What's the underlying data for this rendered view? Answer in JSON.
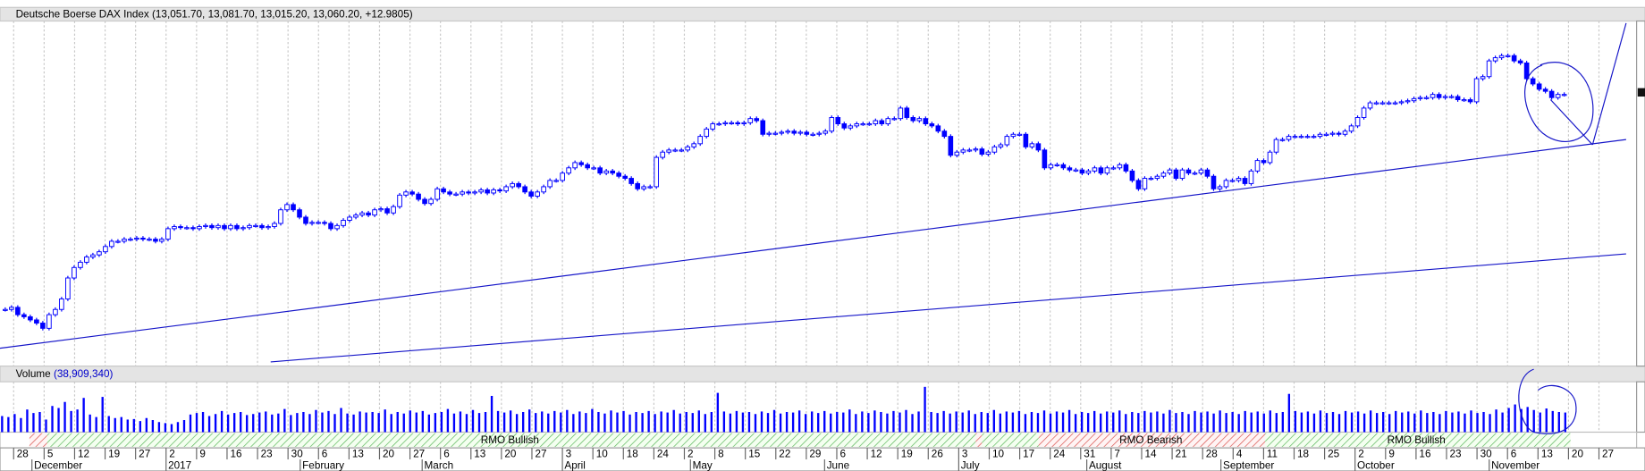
{
  "chart_data": [
    {
      "type": "candlestick",
      "title": "Deutsche Boerse DAX Index (13,051.70, 13,081.70, 13,015.20, 13,060.20, +12.9805)",
      "color": "#0000ff",
      "ylim": [
        10550,
        13800
      ],
      "values": [
        11050,
        11070,
        11000,
        10980,
        10950,
        10920,
        10870,
        11000,
        11050,
        11150,
        11350,
        11450,
        11500,
        11550,
        11570,
        11600,
        11650,
        11700,
        11700,
        11720,
        11720,
        11730,
        11720,
        11720,
        11700,
        11720,
        11820,
        11840,
        11830,
        11830,
        11820,
        11840,
        11850,
        11830,
        11850,
        11820,
        11850,
        11820,
        11830,
        11850,
        11850,
        11830,
        11840,
        11870,
        12000,
        12050,
        12000,
        11930,
        11870,
        11880,
        11880,
        11870,
        11820,
        11850,
        11900,
        11930,
        11950,
        11970,
        11950,
        12000,
        12010,
        11970,
        12030,
        12140,
        12170,
        12150,
        12100,
        12060,
        12100,
        12200,
        12170,
        12150,
        12150,
        12170,
        12160,
        12170,
        12190,
        12160,
        12190,
        12180,
        12220,
        12250,
        12220,
        12170,
        12130,
        12170,
        12220,
        12280,
        12280,
        12350,
        12400,
        12450,
        12430,
        12400,
        12400,
        12350,
        12370,
        12350,
        12320,
        12300,
        12250,
        12200,
        12220,
        12220,
        12500,
        12550,
        12570,
        12570,
        12570,
        12600,
        12630,
        12700,
        12770,
        12820,
        12820,
        12830,
        12830,
        12820,
        12830,
        12870,
        12850,
        12720,
        12730,
        12730,
        12740,
        12750,
        12730,
        12740,
        12720,
        12720,
        12730,
        12750,
        12880,
        12820,
        12780,
        12800,
        12820,
        12820,
        12820,
        12850,
        12820,
        12870,
        12870,
        12970,
        12880,
        12850,
        12870,
        12820,
        12800,
        12750,
        12700,
        12520,
        12550,
        12570,
        12570,
        12580,
        12530,
        12550,
        12600,
        12620,
        12700,
        12720,
        12720,
        12600,
        12630,
        12570,
        12400,
        12430,
        12430,
        12400,
        12380,
        12380,
        12350,
        12370,
        12400,
        12350,
        12400,
        12400,
        12430,
        12370,
        12280,
        12200,
        12300,
        12300,
        12320,
        12350,
        12380,
        12300,
        12380,
        12350,
        12350,
        12380,
        12320,
        12200,
        12220,
        12280,
        12280,
        12300,
        12250,
        12370,
        12470,
        12450,
        12550,
        12670,
        12670,
        12700,
        12700,
        12700,
        12700,
        12700,
        12720,
        12720,
        12730,
        12720,
        12750,
        12800,
        12880,
        12970,
        13020,
        13020,
        13020,
        13020,
        13020,
        13030,
        13040,
        13060,
        13070,
        13070,
        13100,
        13070,
        13080,
        13080,
        13050,
        13050,
        13030,
        13250,
        13270,
        13420,
        13450,
        13470,
        13470,
        13420,
        13400,
        13250,
        13200,
        13150,
        13130,
        13070,
        13100,
        13100
      ]
    },
    {
      "type": "bar",
      "title": "Volume",
      "value_text": "(38,909,340)",
      "color": "#0000ff",
      "ylim": [
        0,
        100000000
      ],
      "values": [
        32000000.0,
        30000000.0,
        36000000.0,
        28000000.0,
        45000000.0,
        38000000.0,
        40000000.0,
        25000000.0,
        52000000.0,
        48000000.0,
        60000000.0,
        42000000.0,
        45000000.0,
        68000000.0,
        35000000.0,
        30000000.0,
        70000000.0,
        32000000.0,
        28000000.0,
        30000000.0,
        25000000.0,
        26000000.0,
        22000000.0,
        28000000.0,
        24000000.0,
        20000000.0,
        18000000.0,
        16000000.0,
        20000000.0,
        24000000.0,
        35000000.0,
        38000000.0,
        40000000.0,
        32000000.0,
        36000000.0,
        42000000.0,
        35000000.0,
        38000000.0,
        40000000.0,
        34000000.0,
        36000000.0,
        39000000.0,
        41000000.0,
        35000000.0,
        37000000.0,
        46000000.0,
        34000000.0,
        38000000.0,
        40000000.0,
        36000000.0,
        44000000.0,
        39000000.0,
        42000000.0,
        36000000.0,
        48000000.0,
        37000000.0,
        35000000.0,
        41000000.0,
        39000000.0,
        40000000.0,
        38000000.0,
        45000000.0,
        36000000.0,
        40000000.0,
        37000000.0,
        43000000.0,
        39000000.0,
        42000000.0,
        35000000.0,
        38000000.0,
        40000000.0,
        46000000.0,
        37000000.0,
        41000000.0,
        36000000.0,
        44000000.0,
        38000000.0,
        40000000.0,
        72000000.0,
        42000000.0,
        39000000.0,
        43000000.0,
        36000000.0,
        40000000.0,
        45000000.0,
        38000000.0,
        41000000.0,
        37000000.0,
        42000000.0,
        39000000.0,
        44000000.0,
        36000000.0,
        41000000.0,
        38000000.0,
        46000000.0,
        40000000.0,
        37000000.0,
        43000000.0,
        39000000.0,
        42000000.0,
        35000000.0,
        40000000.0,
        38000000.0,
        42000000.0,
        36000000.0,
        41000000.0,
        39000000.0,
        44000000.0,
        37000000.0,
        40000000.0,
        38000000.0,
        43000000.0,
        36000000.0,
        40000000.0,
        78000000.0,
        41000000.0,
        37000000.0,
        42000000.0,
        39000000.0,
        40000000.0,
        36000000.0,
        41000000.0,
        38000000.0,
        44000000.0,
        37000000.0,
        40000000.0,
        39000000.0,
        43000000.0,
        36000000.0,
        41000000.0,
        38000000.0,
        42000000.0,
        37000000.0,
        40000000.0,
        39000000.0,
        45000000.0,
        36000000.0,
        41000000.0,
        38000000.0,
        43000000.0,
        40000000.0,
        37000000.0,
        42000000.0,
        39000000.0,
        44000000.0,
        36000000.0,
        41000000.0,
        90000000.0,
        40000000.0,
        38000000.0,
        42000000.0,
        37000000.0,
        41000000.0,
        39000000.0,
        43000000.0,
        36000000.0,
        40000000.0,
        38000000.0,
        44000000.0,
        37000000.0,
        41000000.0,
        39000000.0,
        42000000.0,
        36000000.0,
        40000000.0,
        38000000.0,
        43000000.0,
        37000000.0,
        41000000.0,
        39000000.0,
        44000000.0,
        36000000.0,
        40000000.0,
        38000000.0,
        42000000.0,
        37000000.0,
        41000000.0,
        39000000.0,
        43000000.0,
        36000000.0,
        40000000.0,
        38000000.0,
        42000000.0,
        39000000.0,
        41000000.0,
        37000000.0,
        44000000.0,
        38000000.0,
        40000000.0,
        36000000.0,
        42000000.0,
        39000000.0,
        41000000.0,
        37000000.0,
        43000000.0,
        38000000.0,
        40000000.0,
        36000000.0,
        42000000.0,
        39000000.0,
        41000000.0,
        37000000.0,
        43000000.0,
        38000000.0,
        40000000.0,
        76000000.0,
        42000000.0,
        39000000.0,
        41000000.0,
        37000000.0,
        43000000.0,
        38000000.0,
        40000000.0,
        36000000.0,
        42000000.0,
        39000000.0,
        41000000.0,
        37000000.0,
        43000000.0,
        38000000.0,
        40000000.0,
        36000000.0,
        42000000.0,
        39000000.0,
        41000000.0,
        37000000.0,
        43000000.0,
        38000000.0,
        40000000.0,
        36000000.0,
        42000000.0,
        39000000.0,
        41000000.0,
        37000000.0,
        43000000.0,
        38000000.0,
        40000000.0,
        36000000.0,
        45000000.0,
        39000000.0,
        48000000.0,
        55000000.0,
        46000000.0,
        50000000.0,
        44000000.0,
        39000000.0,
        47000000.0,
        42000000.0,
        40000000.0,
        39000000.0
      ]
    }
  ],
  "x_axis": {
    "ticks": [
      "28",
      "5",
      "12",
      "19",
      "27",
      "2",
      "9",
      "16",
      "23",
      "30",
      "6",
      "13",
      "20",
      "27",
      "6",
      "13",
      "20",
      "27",
      "3",
      "10",
      "18",
      "24",
      "2",
      "8",
      "15",
      "22",
      "29",
      "6",
      "12",
      "19",
      "26",
      "3",
      "10",
      "17",
      "24",
      "31",
      "7",
      "14",
      "21",
      "28",
      "4",
      "11",
      "18",
      "25",
      "2",
      "9",
      "16",
      "23",
      "30",
      "6",
      "13",
      "20",
      "27"
    ],
    "months": [
      "December",
      "2017",
      "February",
      "March",
      "April",
      "May",
      "June",
      "July",
      "August",
      "September",
      "October",
      "November"
    ]
  },
  "rmo_labels": [
    "RMO Bullish",
    "RMO Bearish",
    "RMO Bullish"
  ]
}
